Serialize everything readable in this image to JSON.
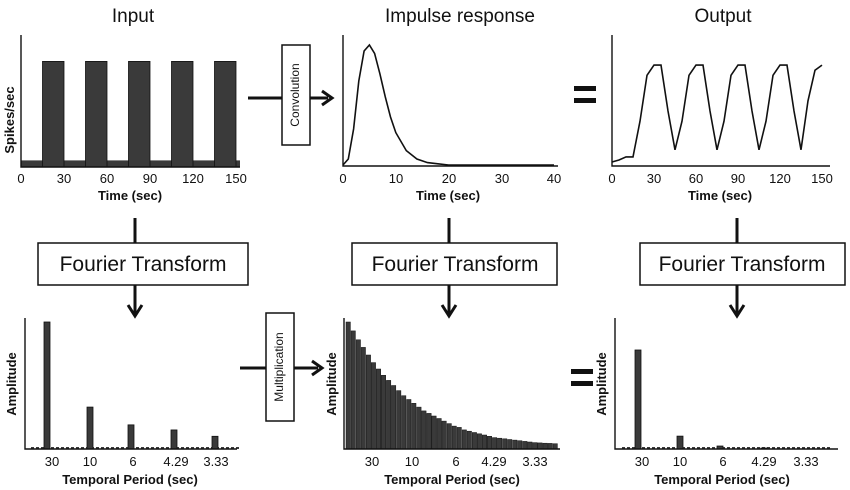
{
  "headers": {
    "input": "Input",
    "impulse": "Impulse response",
    "output": "Output"
  },
  "ops": {
    "convolution": "Convolution",
    "multiplication": "Multiplication",
    "equals": "="
  },
  "fourier_label": "Fourier Transform",
  "colors": {
    "ink": "#111111",
    "bar_fill": "#3a3a3a",
    "background": "#ffffff"
  },
  "chart_data": [
    {
      "id": "input-time",
      "type": "area",
      "xlabel": "Time (sec)",
      "ylabel": "Spikes/sec",
      "xlim": [
        0,
        150
      ],
      "ylim": [
        0,
        1
      ],
      "xticks": [
        "0",
        "30",
        "60",
        "90",
        "120",
        "150"
      ],
      "blocks_on": [
        [
          15,
          30
        ],
        [
          45,
          60
        ],
        [
          75,
          90
        ],
        [
          105,
          120
        ],
        [
          135,
          150
        ]
      ],
      "on_level": 0.8,
      "off_level": 0.05
    },
    {
      "id": "impulse-time",
      "type": "line",
      "xlabel": "Time (sec)",
      "ylabel": "",
      "xlim": [
        0,
        40
      ],
      "ylim": [
        0,
        1
      ],
      "xticks": [
        "0",
        "10",
        "20",
        "30",
        "40"
      ],
      "x": [
        0,
        1,
        2,
        3,
        4,
        5,
        6,
        7,
        8,
        9,
        10,
        12,
        14,
        16,
        18,
        20,
        25,
        30,
        40
      ],
      "y": [
        0,
        0.05,
        0.3,
        0.7,
        0.95,
        1.0,
        0.93,
        0.76,
        0.57,
        0.4,
        0.27,
        0.12,
        0.05,
        0.02,
        0.01,
        0,
        0,
        0,
        0
      ]
    },
    {
      "id": "output-time",
      "type": "line",
      "xlabel": "Time (sec)",
      "ylabel": "",
      "xlim": [
        0,
        150
      ],
      "ylim": [
        0,
        1
      ],
      "xticks": [
        "0",
        "30",
        "60",
        "90",
        "120",
        "150"
      ],
      "x": [
        0,
        5,
        10,
        15,
        20,
        25,
        30,
        35,
        40,
        45,
        50,
        55,
        60,
        65,
        70,
        75,
        80,
        85,
        90,
        95,
        100,
        105,
        110,
        115,
        120,
        125,
        130,
        135,
        140,
        145,
        150
      ],
      "y": [
        0,
        0.02,
        0.05,
        0.05,
        0.4,
        0.85,
        0.95,
        0.95,
        0.5,
        0.12,
        0.4,
        0.85,
        0.95,
        0.95,
        0.5,
        0.12,
        0.4,
        0.85,
        0.95,
        0.95,
        0.5,
        0.12,
        0.4,
        0.85,
        0.95,
        0.95,
        0.5,
        0.12,
        0.6,
        0.9,
        0.95
      ]
    },
    {
      "id": "input-freq",
      "type": "bar",
      "xlabel": "Temporal Period (sec)",
      "ylabel": "Amplitude",
      "xticks": [
        "30",
        "10",
        "6",
        "4.29",
        "3.33"
      ],
      "peaks": [
        {
          "period": "30",
          "value": 1.0
        },
        {
          "period": "10",
          "value": 0.33
        },
        {
          "period": "6",
          "value": 0.19
        },
        {
          "period": "4.29",
          "value": 0.15
        },
        {
          "period": "3.33",
          "value": 0.1
        }
      ],
      "baseline": 0.01
    },
    {
      "id": "impulse-freq",
      "type": "bar",
      "xlabel": "Temporal Period (sec)",
      "ylabel": "Amplitude",
      "xticks": [
        "30",
        "10",
        "6",
        "4.29",
        "3.33"
      ],
      "values": [
        1.0,
        0.93,
        0.86,
        0.8,
        0.74,
        0.68,
        0.63,
        0.58,
        0.54,
        0.5,
        0.46,
        0.42,
        0.39,
        0.36,
        0.33,
        0.3,
        0.28,
        0.26,
        0.24,
        0.22,
        0.2,
        0.18,
        0.17,
        0.15,
        0.14,
        0.13,
        0.12,
        0.11,
        0.1,
        0.09,
        0.085,
        0.08,
        0.075,
        0.07,
        0.065,
        0.06,
        0.055,
        0.05,
        0.048,
        0.046,
        0.044,
        0.042
      ]
    },
    {
      "id": "output-freq",
      "type": "bar",
      "xlabel": "Temporal Period (sec)",
      "ylabel": "Amplitude",
      "xticks": [
        "30",
        "10",
        "6",
        "4.29",
        "3.33"
      ],
      "peaks": [
        {
          "period": "30",
          "value": 1.0
        },
        {
          "period": "10",
          "value": 0.13
        },
        {
          "period": "6",
          "value": 0.03
        },
        {
          "period": "4.29",
          "value": 0.01
        }
      ],
      "baseline": 0.005
    }
  ]
}
